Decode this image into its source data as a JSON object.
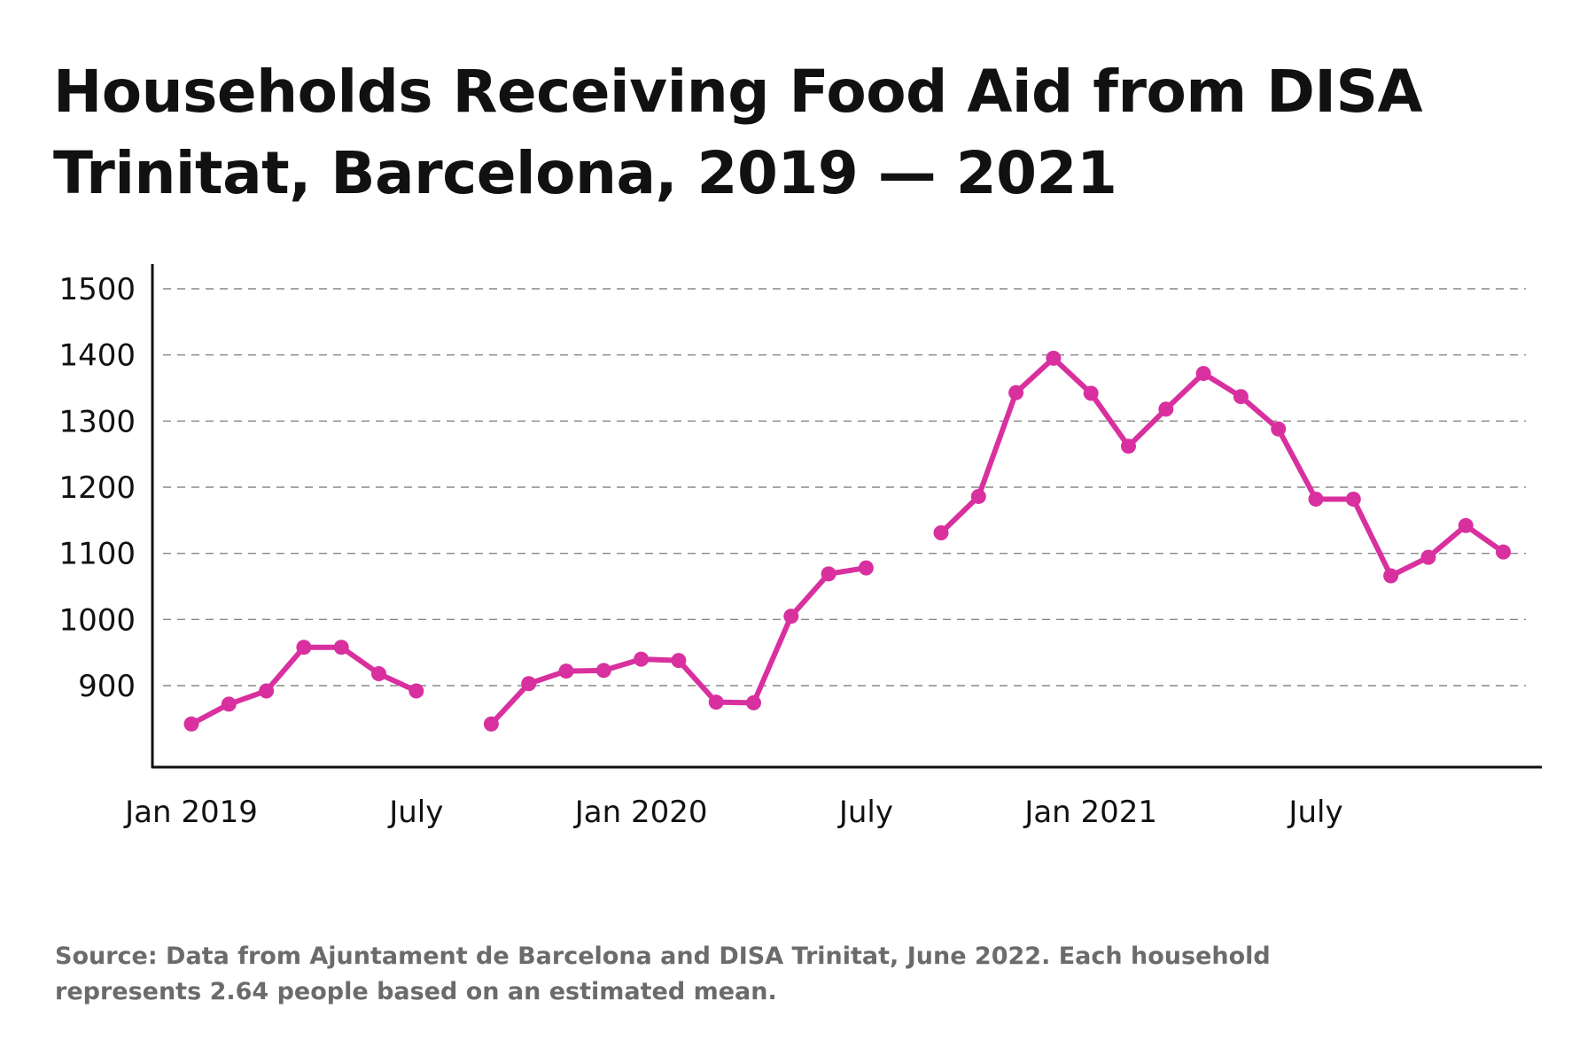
{
  "title": "Households Receiving Food Aid from DISA Trinitat, Barcelona, 2019 — 2021",
  "source": "Source: Data from Ajuntament de Barcelona and DISA Trinitat, June 2022. Each household represents 2.64 people based on an estimated mean.",
  "chart_data": {
    "type": "line",
    "title": "Households Receiving Food Aid from DISA Trinitat, Barcelona, 2019 — 2021",
    "xlabel": "",
    "ylabel": "",
    "ylim": [
      780,
      1535
    ],
    "yticks": [
      900,
      1000,
      1100,
      1200,
      1300,
      1400,
      1500
    ],
    "grid": "horizontal dashed",
    "line_color": "#d9309f",
    "x_tick_labels": [
      {
        "month_index": 0,
        "label": "Jan 2019"
      },
      {
        "month_index": 6,
        "label": "July"
      },
      {
        "month_index": 12,
        "label": "Jan 2020"
      },
      {
        "month_index": 18,
        "label": "July"
      },
      {
        "month_index": 24,
        "label": "Jan 2021"
      },
      {
        "month_index": 30,
        "label": "July"
      }
    ],
    "x": [
      "2019-01",
      "2019-02",
      "2019-03",
      "2019-04",
      "2019-05",
      "2019-06",
      "2019-07",
      "2019-08",
      "2019-09",
      "2019-10",
      "2019-11",
      "2019-12",
      "2020-01",
      "2020-02",
      "2020-03",
      "2020-04",
      "2020-05",
      "2020-06",
      "2020-07",
      "2020-08",
      "2020-09",
      "2020-10",
      "2020-11",
      "2020-12",
      "2021-01",
      "2021-02",
      "2021-03",
      "2021-04",
      "2021-05",
      "2021-06",
      "2021-07",
      "2021-08",
      "2021-09",
      "2021-10",
      "2021-11",
      "2021-12"
    ],
    "values": [
      842,
      872,
      892,
      958,
      958,
      918,
      892,
      null,
      842,
      903,
      922,
      923,
      940,
      938,
      875,
      874,
      1005,
      1069,
      1078,
      null,
      1131,
      1186,
      1343,
      1395,
      1342,
      1262,
      1318,
      1372,
      1337,
      1288,
      1182,
      1182,
      1066,
      1094,
      1142,
      1102
    ]
  }
}
